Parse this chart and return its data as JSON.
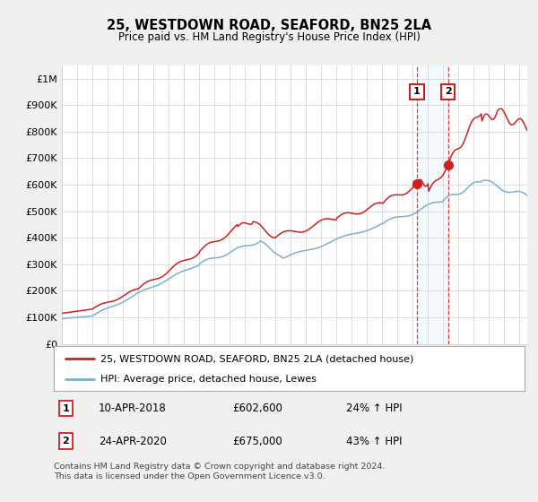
{
  "title": "25, WESTDOWN ROAD, SEAFORD, BN25 2LA",
  "subtitle": "Price paid vs. HM Land Registry's House Price Index (HPI)",
  "legend_line1": "25, WESTDOWN ROAD, SEAFORD, BN25 2LA (detached house)",
  "legend_line2": "HPI: Average price, detached house, Lewes",
  "sale1_date": "10-APR-2018",
  "sale1_price": "£602,600",
  "sale1_hpi": "24% ↑ HPI",
  "sale1_year": 2018.27,
  "sale1_value": 602600,
  "sale2_date": "24-APR-2020",
  "sale2_price": "£675,000",
  "sale2_hpi": "43% ↑ HPI",
  "sale2_year": 2020.31,
  "sale2_value": 675000,
  "footer": "Contains HM Land Registry data © Crown copyright and database right 2024.\nThis data is licensed under the Open Government Licence v3.0.",
  "red_color": "#cc2222",
  "blue_color": "#7ab0d4",
  "bg_color": "#f0f0f0",
  "plot_bg": "#ffffff",
  "shade_color": "#d0e8f8",
  "ylim_max": 1050000,
  "xlim_start": 1995.0,
  "xlim_end": 2025.5
}
